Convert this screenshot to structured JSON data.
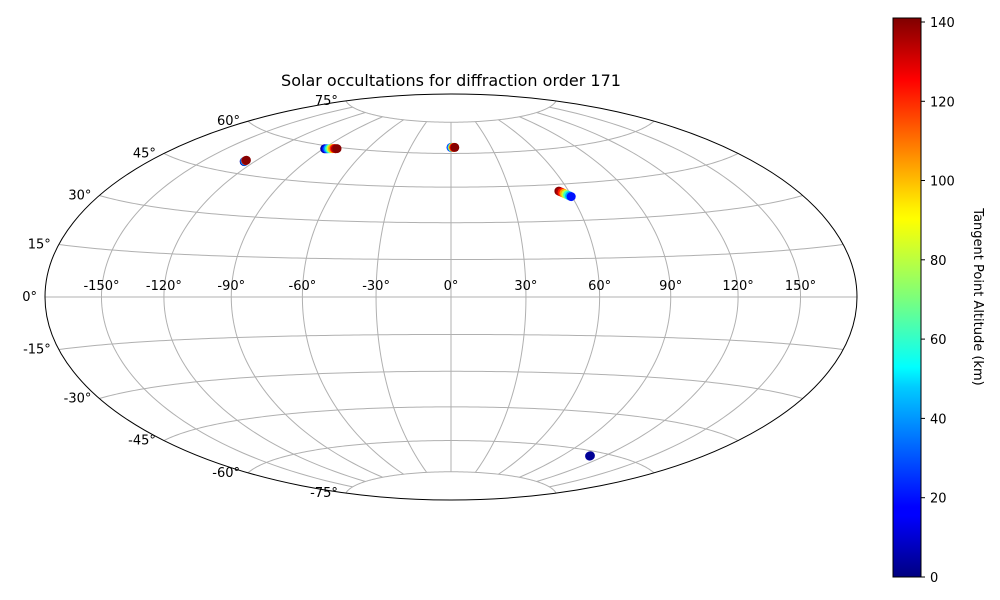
{
  "chart_data": {
    "type": "scatter",
    "projection": "hammer",
    "title": "Solar occultations for diffraction order 171",
    "grid": true,
    "lon_ticks": [
      -150,
      -120,
      -90,
      -60,
      -30,
      0,
      30,
      60,
      90,
      120,
      150
    ],
    "lat_ticks": [
      -75,
      -60,
      -45,
      -30,
      -15,
      0,
      15,
      30,
      45,
      60,
      75
    ],
    "lon_tick_labels": [
      "-150°",
      "-120°",
      "-90°",
      "-60°",
      "-30°",
      "0°",
      "30°",
      "60°",
      "90°",
      "120°",
      "150°"
    ],
    "lat_tick_labels": [
      "-75°",
      "-60°",
      "-45°",
      "-30°",
      "-15°",
      "0°",
      "15°",
      "30°",
      "45°",
      "60°",
      "75°"
    ],
    "colorbar": {
      "label": "Tangent Point Altitude (km)",
      "range": [
        0,
        141
      ],
      "ticks": [
        0,
        20,
        40,
        60,
        80,
        100,
        120,
        140
      ],
      "tick_labels": [
        "0",
        "20",
        "40",
        "60",
        "80",
        "100",
        "120",
        "140"
      ],
      "colormap": "jet"
    },
    "points": [
      {
        "lon": -126.0,
        "lat": 49.4,
        "alt": 5
      },
      {
        "lon": -126.0,
        "lat": 49.6,
        "alt": 40
      },
      {
        "lon": -126.0,
        "lat": 49.8,
        "alt": 130
      },
      {
        "lon": -126.0,
        "lat": 50.0,
        "alt": 140
      },
      {
        "lon": -89.0,
        "lat": 58.7,
        "alt": 5
      },
      {
        "lon": -88.0,
        "lat": 58.8,
        "alt": 20
      },
      {
        "lon": -87.0,
        "lat": 58.9,
        "alt": 40
      },
      {
        "lon": -86.0,
        "lat": 59.0,
        "alt": 60
      },
      {
        "lon": -85.0,
        "lat": 59.1,
        "alt": 80
      },
      {
        "lon": -84.0,
        "lat": 59.2,
        "alt": 100
      },
      {
        "lon": -83.0,
        "lat": 59.3,
        "alt": 120
      },
      {
        "lon": -82.0,
        "lat": 59.3,
        "alt": 135
      },
      {
        "lon": -81.0,
        "lat": 59.4,
        "alt": 140
      },
      {
        "lon": 0.0,
        "lat": 62.8,
        "alt": 20
      },
      {
        "lon": 0.5,
        "lat": 62.8,
        "alt": 40
      },
      {
        "lon": 1.2,
        "lat": 62.8,
        "alt": 80
      },
      {
        "lon": 2.0,
        "lat": 62.8,
        "alt": 120
      },
      {
        "lon": 2.8,
        "lat": 62.8,
        "alt": 140
      },
      {
        "lon": 55.0,
        "lat": 42.2,
        "alt": 140
      },
      {
        "lon": 55.5,
        "lat": 41.9,
        "alt": 135
      },
      {
        "lon": 56.2,
        "lat": 41.6,
        "alt": 120
      },
      {
        "lon": 56.9,
        "lat": 41.2,
        "alt": 100
      },
      {
        "lon": 57.6,
        "lat": 40.8,
        "alt": 80
      },
      {
        "lon": 58.3,
        "lat": 40.4,
        "alt": 60
      },
      {
        "lon": 59.0,
        "lat": 40.0,
        "alt": 40
      },
      {
        "lon": 59.6,
        "lat": 39.7,
        "alt": 20
      },
      {
        "lon": 110.0,
        "lat": -62.0,
        "alt": 5
      },
      {
        "lon": 110.0,
        "lat": -61.8,
        "alt": 3
      }
    ]
  }
}
